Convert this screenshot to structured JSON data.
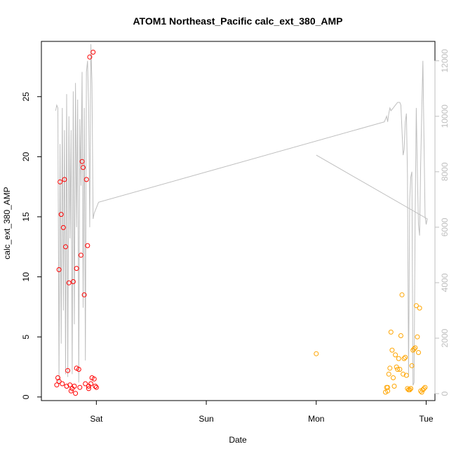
{
  "chart_data": {
    "type": "scatter",
    "title": "ATOM1 Northeast_Pacific calc_ext_380_AMP",
    "xlabel": "Date",
    "ylabel": "calc_ext_380_AMP",
    "x_ticks": [
      "Sat",
      "Sun",
      "Mon",
      "Tue"
    ],
    "x_tick_values": [
      0,
      1,
      2,
      3
    ],
    "xlim": [
      -0.5,
      3.08
    ],
    "ylim": [
      -0.3,
      29.6
    ],
    "y_ticks": [
      0,
      5,
      10,
      15,
      20,
      25
    ],
    "y2_ticks": [
      0,
      2000,
      4000,
      6000,
      8000,
      10000,
      12000
    ],
    "y2lim": [
      -250,
      12700
    ],
    "colors": {
      "series1": "#ff0000",
      "series2": "#ffa500",
      "series3": "#bebebe"
    },
    "series": [
      {
        "axis": "left",
        "marker": "circle",
        "color": "#ff0000",
        "x": [
          -0.36,
          -0.35,
          -0.34,
          -0.34,
          -0.33,
          -0.32,
          -0.31,
          -0.3,
          -0.29,
          -0.28,
          -0.27,
          -0.26,
          -0.25,
          -0.24,
          -0.23,
          -0.22,
          -0.21,
          -0.2,
          -0.19,
          -0.18,
          -0.18,
          -0.16,
          -0.15,
          -0.14,
          -0.13,
          -0.12,
          -0.11,
          -0.1,
          -0.09,
          -0.08,
          -0.07,
          -0.07,
          -0.06,
          -0.05,
          -0.04,
          -0.03,
          -0.02,
          -0.01,
          0.0
        ],
        "y": [
          1.0,
          1.6,
          1.3,
          10.6,
          17.9,
          15.2,
          1.1,
          14.1,
          18.1,
          12.5,
          0.9,
          2.2,
          9.5,
          1.0,
          0.5,
          0.7,
          9.6,
          0.9,
          0.3,
          2.4,
          10.7,
          2.3,
          0.8,
          11.8,
          19.6,
          19.1,
          8.5,
          1.1,
          18.1,
          12.6,
          0.9,
          0.7,
          28.3,
          1.1,
          1.6,
          28.7,
          1.5,
          0.9,
          0.8
        ]
      },
      {
        "axis": "left",
        "marker": "circle",
        "color": "#ffa500",
        "x": [
          2.0,
          2.63,
          2.64,
          2.65,
          2.65,
          2.66,
          2.67,
          2.68,
          2.69,
          2.7,
          2.71,
          2.72,
          2.73,
          2.74,
          2.75,
          2.76,
          2.77,
          2.78,
          2.79,
          2.8,
          2.81,
          2.82,
          2.83,
          2.84,
          2.85,
          2.86,
          2.86,
          2.87,
          2.88,
          2.89,
          2.9,
          2.91,
          2.92,
          2.93,
          2.94,
          2.95,
          2.96,
          2.97,
          2.98,
          2.99
        ],
        "y": [
          3.6,
          0.4,
          0.8,
          0.5,
          0.8,
          1.9,
          2.4,
          5.4,
          3.9,
          1.6,
          0.9,
          3.5,
          2.5,
          2.3,
          3.2,
          2.3,
          5.1,
          8.5,
          1.9,
          3.2,
          3.3,
          1.8,
          0.7,
          0.6,
          0.6,
          0.7,
          0.7,
          2.6,
          3.9,
          4.0,
          4.1,
          7.6,
          5.0,
          3.7,
          7.4,
          0.5,
          0.4,
          0.6,
          0.7,
          0.8
        ]
      },
      {
        "axis": "right",
        "marker": "line",
        "color": "#bebebe",
        "x": [
          -0.37,
          -0.36,
          -0.35,
          -0.34,
          -0.33,
          -0.32,
          -0.31,
          -0.3,
          -0.29,
          -0.28,
          -0.27,
          -0.26,
          -0.25,
          -0.24,
          -0.23,
          -0.22,
          -0.21,
          -0.2,
          -0.19,
          -0.18,
          -0.17,
          -0.16,
          -0.15,
          -0.14,
          -0.13,
          -0.12,
          -0.11,
          -0.1,
          -0.09,
          -0.08,
          -0.07,
          -0.06,
          -0.05,
          -0.04,
          -0.03,
          -0.02,
          -0.01,
          0.0,
          0.01,
          0.02,
          2.62,
          2.63,
          2.64,
          2.65,
          2.66,
          2.67,
          2.68,
          2.7,
          2.72,
          2.74,
          2.76,
          2.77,
          2.78,
          2.79,
          2.8,
          2.81,
          2.82,
          2.83,
          2.84,
          2.85,
          2.86,
          2.87,
          2.88,
          2.89,
          2.9,
          2.91,
          2.92,
          2.93,
          2.94,
          2.95,
          2.96,
          2.97,
          2.98,
          2.99,
          3.0,
          3.01,
          2.0
        ],
        "y": [
          10200,
          10400,
          10300,
          400,
          9000,
          1800,
          10300,
          3000,
          9500,
          700,
          10800,
          600,
          10000,
          5600,
          9500,
          700,
          10900,
          2500,
          11200,
          6000,
          10600,
          400,
          9900,
          7500,
          11600,
          3100,
          10300,
          1200,
          11600,
          12000,
          10300,
          6000,
          12600,
          11200,
          6300,
          6500,
          6600,
          6700,
          6800,
          6900,
          9800,
          9900,
          10000,
          9800,
          10100,
          10300,
          10200,
          10300,
          10400,
          10500,
          10500,
          10400,
          9500,
          8600,
          8800,
          9800,
          10100,
          7900,
          600,
          7000,
          7800,
          8000,
          300,
          400,
          6400,
          10300,
          8000,
          6100,
          5700,
          8200,
          10200,
          12000,
          9300,
          6400,
          6100,
          6300,
          8600
        ]
      }
    ]
  }
}
